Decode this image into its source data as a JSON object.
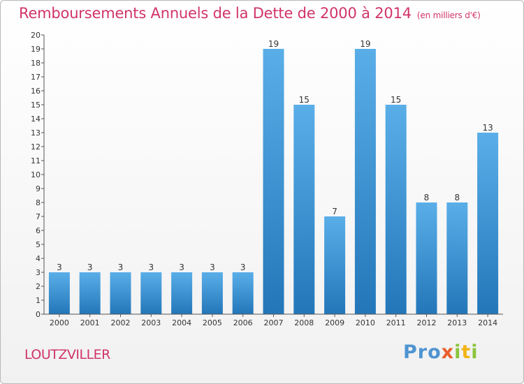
{
  "title": "Remboursements Annuels de la Dette de 2000 à 2014",
  "unit_note": "(en milliers d'€)",
  "place": "LOUTZVILLER",
  "logo_text": "Proxiti",
  "colors": {
    "title": "#d0346a",
    "bar_top": "#5aaee8",
    "bar_bottom": "#2377b9",
    "axis": "#555555"
  },
  "chart_data": {
    "type": "bar",
    "categories": [
      "2000",
      "2001",
      "2002",
      "2003",
      "2004",
      "2005",
      "2006",
      "2007",
      "2008",
      "2009",
      "2010",
      "2011",
      "2012",
      "2013",
      "2014"
    ],
    "values": [
      3,
      3,
      3,
      3,
      3,
      3,
      3,
      19,
      15,
      7,
      19,
      15,
      8,
      8,
      13
    ],
    "ylim": [
      0,
      20
    ],
    "yticks": [
      0,
      1,
      2,
      3,
      4,
      5,
      6,
      7,
      8,
      9,
      10,
      11,
      12,
      13,
      14,
      15,
      16,
      17,
      18,
      19,
      20
    ],
    "grid": false,
    "title": "Remboursements Annuels de la Dette de 2000 à 2014",
    "xlabel": "",
    "ylabel": ""
  }
}
